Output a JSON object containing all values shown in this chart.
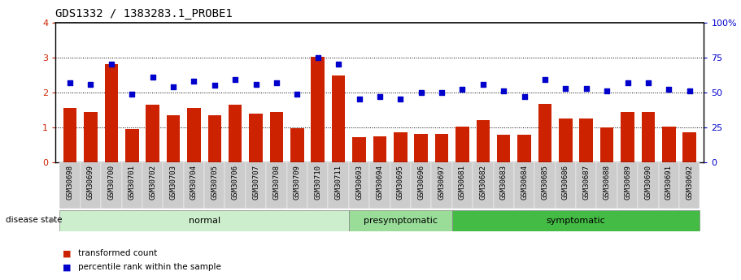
{
  "title": "GDS1332 / 1383283.1_PROBE1",
  "samples": [
    "GSM30698",
    "GSM30699",
    "GSM30700",
    "GSM30701",
    "GSM30702",
    "GSM30703",
    "GSM30704",
    "GSM30705",
    "GSM30706",
    "GSM30707",
    "GSM30708",
    "GSM30709",
    "GSM30710",
    "GSM30711",
    "GSM30693",
    "GSM30694",
    "GSM30695",
    "GSM30696",
    "GSM30697",
    "GSM30681",
    "GSM30682",
    "GSM30683",
    "GSM30684",
    "GSM30685",
    "GSM30686",
    "GSM30687",
    "GSM30688",
    "GSM30689",
    "GSM30690",
    "GSM30691",
    "GSM30692"
  ],
  "bar_values": [
    1.55,
    1.45,
    2.8,
    0.95,
    1.65,
    1.35,
    1.55,
    1.35,
    1.65,
    1.4,
    1.45,
    0.98,
    3.02,
    2.48,
    0.72,
    0.75,
    0.85,
    0.82,
    0.82,
    1.02,
    1.2,
    0.8,
    0.78,
    1.68,
    1.25,
    1.25,
    1.0,
    1.45,
    1.45,
    1.02,
    0.85
  ],
  "dot_values_pct": [
    57,
    56,
    70,
    49,
    61,
    54,
    58,
    55,
    59,
    56,
    57,
    49,
    75,
    70,
    45,
    47,
    45,
    50,
    50,
    52,
    56,
    51,
    47,
    59,
    53,
    53,
    51,
    57,
    57,
    52,
    51
  ],
  "groups": [
    {
      "name": "normal",
      "start": 0,
      "end": 14,
      "color": "#cceecc"
    },
    {
      "name": "presymptomatic",
      "start": 14,
      "end": 19,
      "color": "#99dd99"
    },
    {
      "name": "symptomatic",
      "start": 19,
      "end": 31,
      "color": "#44bb44"
    }
  ],
  "ylim_left": [
    0,
    4
  ],
  "ylim_right": [
    0,
    100
  ],
  "yticks_left": [
    0,
    1,
    2,
    3,
    4
  ],
  "yticks_right": [
    0,
    25,
    50,
    75,
    100
  ],
  "bar_color": "#cc2200",
  "dot_color": "#0000cc",
  "disease_state_label": "disease state",
  "legend_bar": "transformed count",
  "legend_dot": "percentile rank within the sample",
  "title_fontsize": 10,
  "tick_fontsize": 6.5
}
